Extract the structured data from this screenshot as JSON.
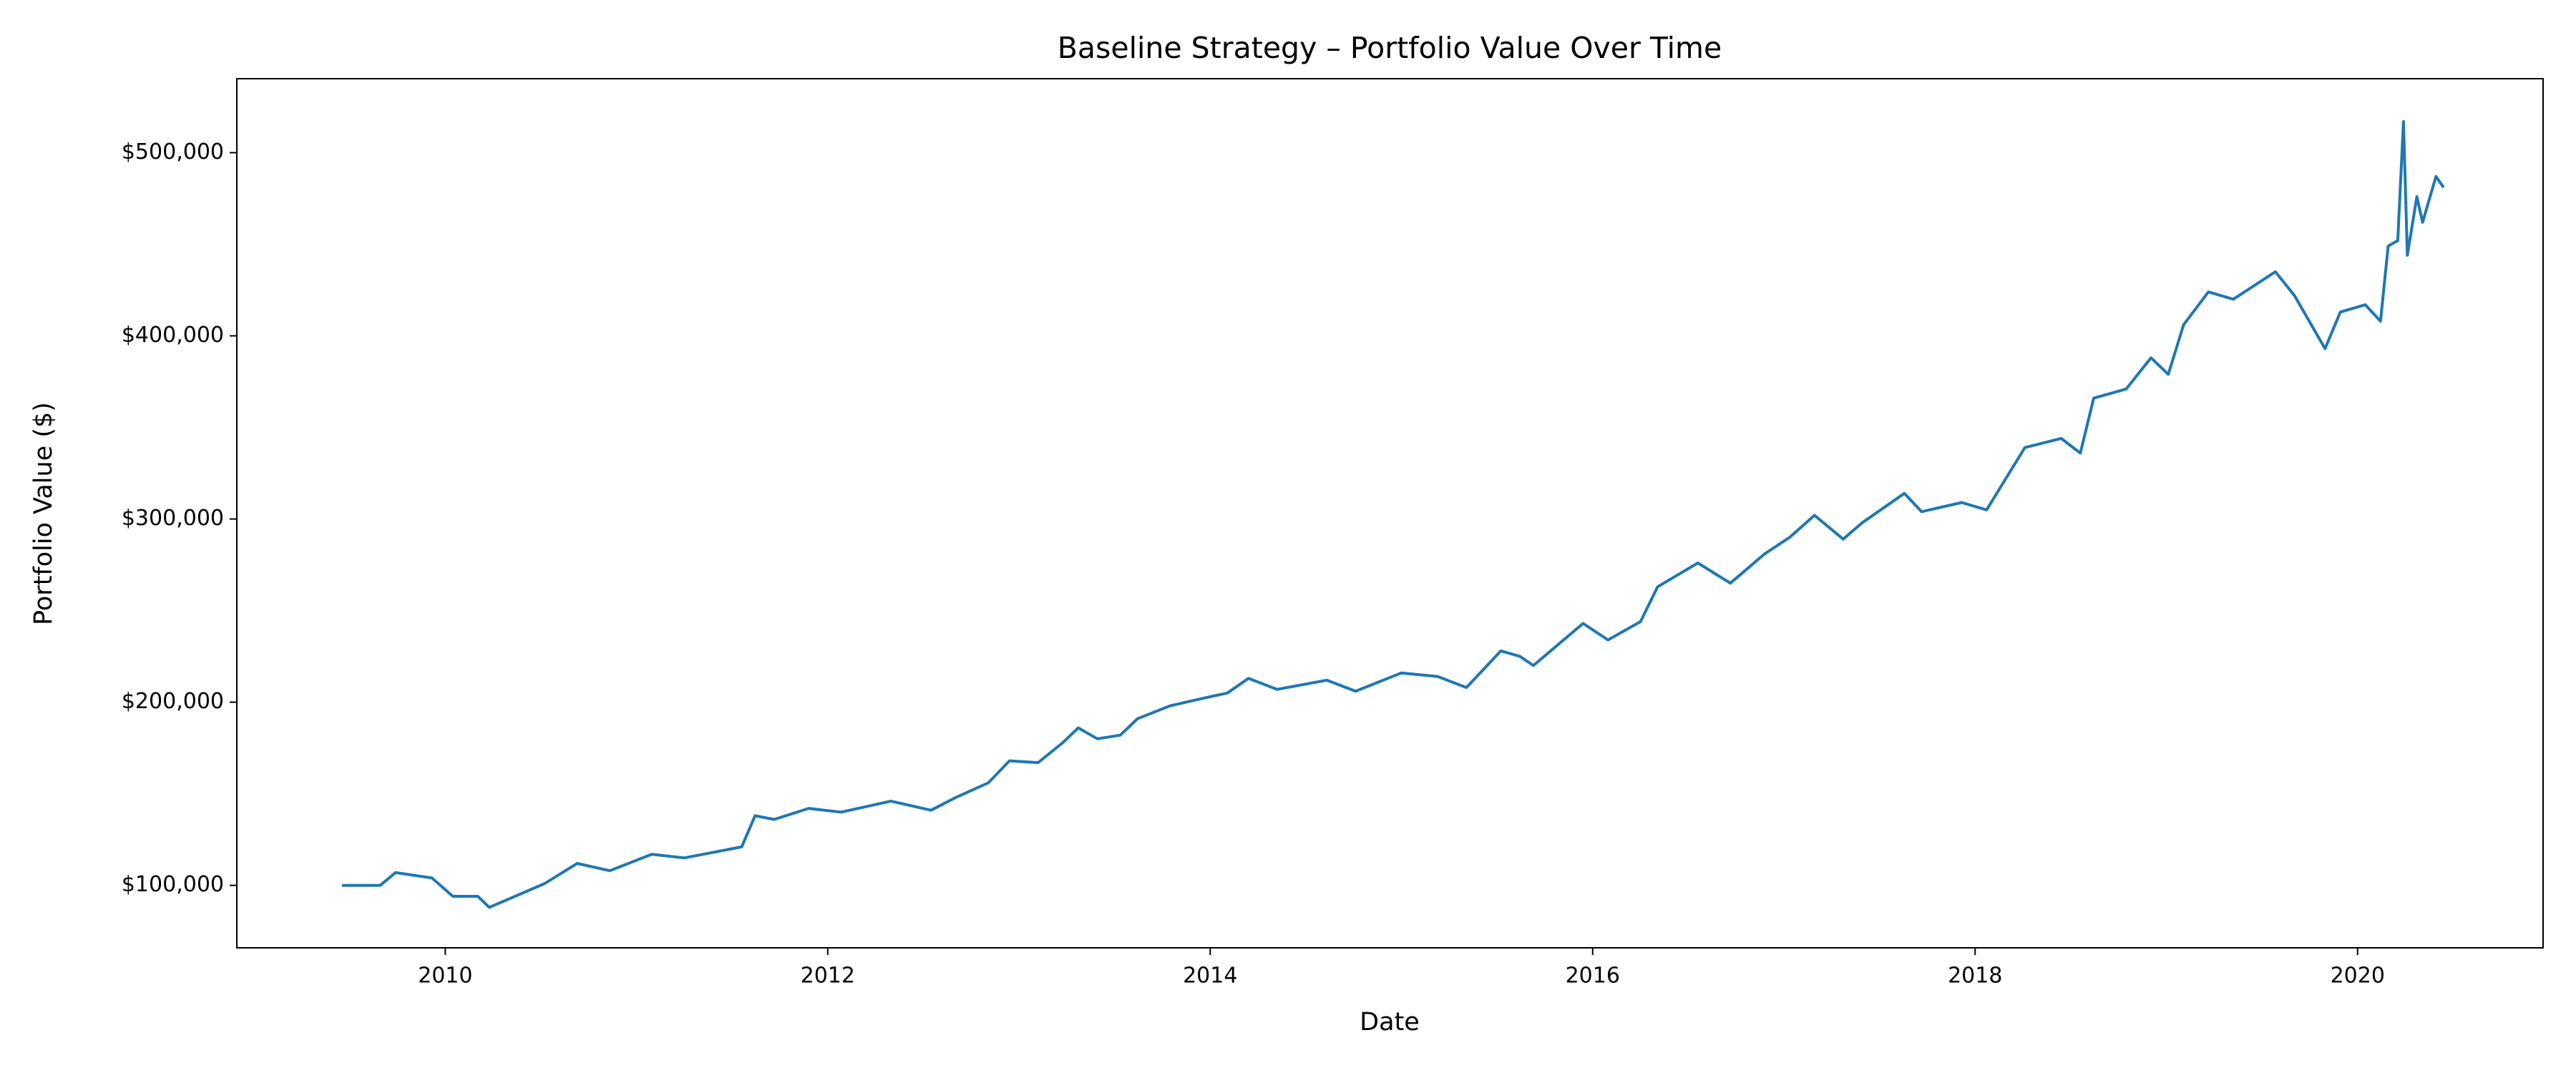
{
  "chart_data": {
    "type": "line",
    "title": "Baseline Strategy – Portfolio Value Over Time",
    "xlabel": "Date",
    "ylabel": "Portfolio Value ($)",
    "xlim": [
      2008.91,
      2020.97
    ],
    "ylim": [
      65900,
      540400
    ],
    "xticks": [
      2010,
      2012,
      2014,
      2016,
      2018,
      2020
    ],
    "yticks": [
      {
        "value": 100000,
        "label": "$100,000"
      },
      {
        "value": 200000,
        "label": "$200,000"
      },
      {
        "value": 300000,
        "label": "$300,000"
      },
      {
        "value": 400000,
        "label": "$400,000"
      },
      {
        "value": 500000,
        "label": "$500,000"
      }
    ],
    "grid": false,
    "series": [
      {
        "color": "#1f77b4",
        "x": [
          2009.46,
          2009.66,
          2009.74,
          2009.93,
          2010.04,
          2010.17,
          2010.23,
          2010.52,
          2010.69,
          2010.86,
          2011.08,
          2011.25,
          2011.55,
          2011.62,
          2011.72,
          2011.9,
          2012.07,
          2012.33,
          2012.54,
          2012.67,
          2012.84,
          2012.95,
          2013.1,
          2013.23,
          2013.31,
          2013.41,
          2013.53,
          2013.62,
          2013.79,
          2014.0,
          2014.09,
          2014.2,
          2014.35,
          2014.61,
          2014.76,
          2015.0,
          2015.19,
          2015.34,
          2015.52,
          2015.62,
          2015.69,
          2015.95,
          2016.08,
          2016.25,
          2016.34,
          2016.55,
          2016.72,
          2016.9,
          2017.03,
          2017.16,
          2017.31,
          2017.41,
          2017.63,
          2017.72,
          2017.93,
          2018.06,
          2018.26,
          2018.45,
          2018.55,
          2018.62,
          2018.79,
          2018.92,
          2019.01,
          2019.09,
          2019.22,
          2019.35,
          2019.57,
          2019.67,
          2019.83,
          2019.91,
          2020.04,
          2020.12,
          2020.16,
          2020.21,
          2020.24,
          2020.26,
          2020.31,
          2020.34,
          2020.41,
          2020.45
        ],
        "values": [
          100000,
          100000,
          107000,
          104000,
          94000,
          94000,
          88000,
          101000,
          112000,
          108000,
          117000,
          115000,
          121000,
          138000,
          136000,
          142000,
          140000,
          146000,
          141000,
          148000,
          156000,
          168000,
          167000,
          178000,
          186000,
          180000,
          182000,
          191000,
          198000,
          203000,
          205000,
          213000,
          207000,
          212000,
          206000,
          216000,
          214000,
          208000,
          228000,
          225000,
          220000,
          243000,
          234000,
          244000,
          263000,
          276000,
          265000,
          281000,
          290000,
          302000,
          289000,
          298000,
          314000,
          304000,
          309000,
          305000,
          339000,
          344000,
          336000,
          366000,
          371000,
          388000,
          379000,
          406000,
          424000,
          420000,
          435000,
          422000,
          393000,
          413000,
          417000,
          408000,
          449000,
          452000,
          517000,
          444000,
          476000,
          462000,
          487000,
          481000
        ]
      }
    ]
  }
}
